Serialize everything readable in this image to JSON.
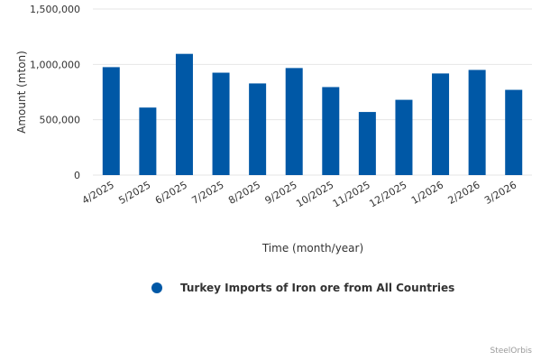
{
  "chart_data": {
    "type": "bar",
    "categories": [
      "4/2025",
      "5/2025",
      "6/2025",
      "7/2025",
      "8/2025",
      "9/2025",
      "10/2025",
      "11/2025",
      "12/2025",
      "1/2026",
      "2/2026",
      "3/2026"
    ],
    "series": [
      {
        "name": "Turkey Imports of Iron ore from All Countries",
        "values": [
          975000,
          610000,
          1095000,
          925000,
          828000,
          967000,
          795000,
          570000,
          680000,
          918000,
          950000,
          770000
        ]
      }
    ],
    "yticks": [
      "0",
      "500,000",
      "1,000,000",
      "1,500,000"
    ],
    "ylim": [
      0,
      1500000
    ],
    "xlabel": "Time (month/year)",
    "ylabel": "Amount (mton)",
    "grid": true,
    "legend_position": "bottom",
    "bar_color": "#0058a6",
    "grid_color": "#e6e6e6"
  },
  "credit": "SteelOrbis"
}
